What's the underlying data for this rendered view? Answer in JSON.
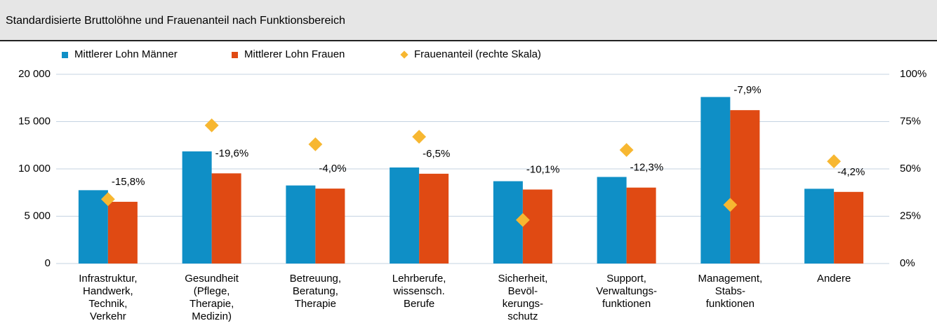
{
  "chart_data": {
    "type": "bar",
    "title": "Standardisierte Bruttolöhne und Frauenanteil nach Funktionsbereich",
    "categories": [
      [
        "Infrastruktur,",
        "Handwerk,",
        "Technik,",
        "Verkehr"
      ],
      [
        "Gesundheit",
        "(Pflege,",
        "Therapie,",
        "Medizin)"
      ],
      [
        "Betreuung,",
        "Beratung,",
        "Therapie"
      ],
      [
        "Lehrberufe,",
        "wissensch.",
        "Berufe"
      ],
      [
        "Sicherheit,",
        "Bevöl-",
        "kerungs-",
        "schutz"
      ],
      [
        "Support,",
        "Verwaltungs-",
        "funktionen"
      ],
      [
        "Management,",
        "Stabs-",
        "funktionen"
      ],
      [
        "Andere"
      ]
    ],
    "series": [
      {
        "name": "Mittlerer Lohn Männer",
        "color": "#0f8fc6",
        "values": [
          7750,
          11850,
          8250,
          10150,
          8700,
          9150,
          17600,
          7900
        ]
      },
      {
        "name": "Mittlerer Lohn Frauen",
        "color": "#e04a13",
        "values": [
          6525,
          9530,
          7920,
          9490,
          7820,
          8025,
          16210,
          7570
        ]
      },
      {
        "name": "Frauenanteil (rechte Skala)",
        "color": "#f7b731",
        "type": "scatter",
        "axis": "y2",
        "values": [
          34,
          73,
          63,
          67,
          23,
          60,
          31,
          54
        ]
      }
    ],
    "gap_labels": [
      "-15,8%",
      "-19,6%",
      "-4,0%",
      "-6,5%",
      "-10,1%",
      "-12,3%",
      "-7,9%",
      "-4,2%"
    ],
    "ylim": [
      0,
      20000
    ],
    "yticks": [
      0,
      {
        "value": 5000,
        "label": "5 000"
      },
      {
        "value": 10000,
        "label": "10 000"
      },
      {
        "value": 15000,
        "label": "15 000"
      },
      {
        "value": 20000,
        "label": "20 000"
      }
    ],
    "y2lim": [
      0,
      100
    ],
    "y2ticks": [
      {
        "value": 0,
        "label": "0%"
      },
      {
        "value": 25,
        "label": "25%"
      },
      {
        "value": 50,
        "label": "50%"
      },
      {
        "value": 75,
        "label": "75%"
      },
      {
        "value": 100,
        "label": "100%"
      }
    ],
    "grid": true
  }
}
